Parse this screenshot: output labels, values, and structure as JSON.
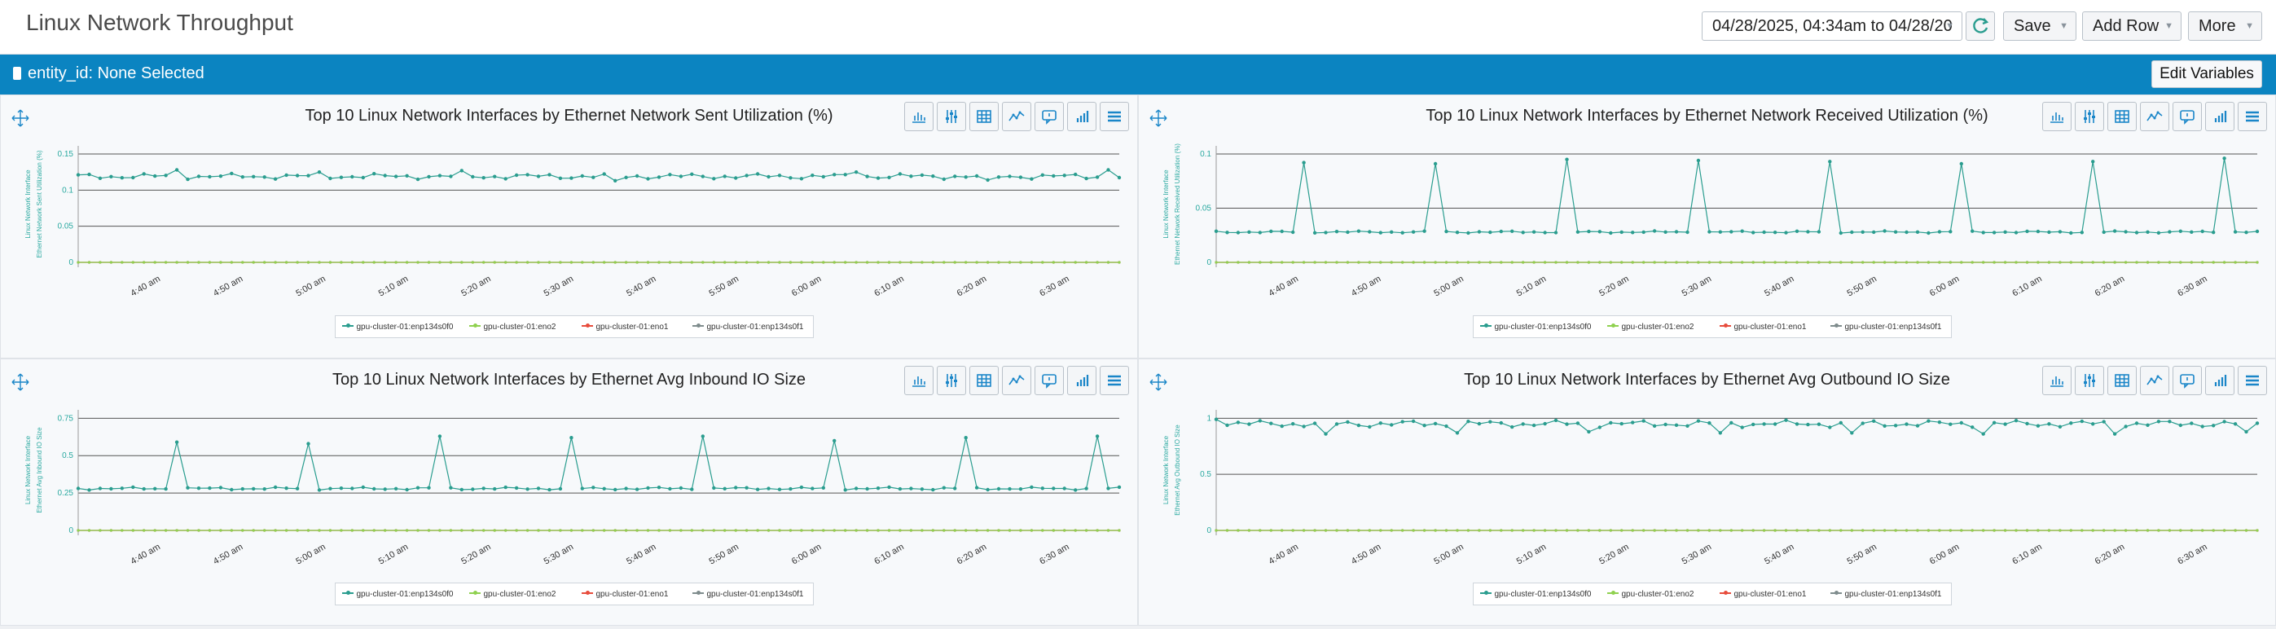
{
  "header": {
    "title": "Linux Network Throughput",
    "time_range": "04/28/2025, 04:34am to 04/28/20",
    "save_label": "Save",
    "add_row_label": "Add Row",
    "more_label": "More"
  },
  "variables": {
    "entity_label": "entity_id: None Selected",
    "edit_label": "Edit Variables"
  },
  "colors": {
    "series0": "#2a9d8f",
    "series1": "#8fd14f",
    "series2": "#e74c3c",
    "series3": "#7f8c8d",
    "accent": "#0b84c1"
  },
  "legend": [
    "gpu-cluster-01:enp134s0f0",
    "gpu-cluster-01:eno2",
    "gpu-cluster-01:eno1",
    "gpu-cluster-01:enp134s0f1"
  ],
  "toolbar_icons": [
    "bar-chart-icon",
    "sliders-icon",
    "table-icon",
    "line-chart-icon",
    "comment-icon",
    "column-chart-icon",
    "menu-icon"
  ],
  "chart_data": [
    {
      "type": "line",
      "title": "Top 10 Linux Network Interfaces by Ethernet Network Sent Utilization (%)",
      "ylabel": "Linux Network Interface",
      "ylabel2": "Ethernet Network Sent Utilization (%)",
      "yticks": [
        "0.15",
        "0.1",
        "0.05",
        "0"
      ],
      "ylim": [
        0,
        0.15
      ],
      "xticks": [
        "4:40 am",
        "4:50 am",
        "5:00 am",
        "5:10 am",
        "5:20 am",
        "5:30 am",
        "5:40 am",
        "5:50 am",
        "6:00 am",
        "6:10 am",
        "6:20 am",
        "6:30 am"
      ],
      "xlim": [
        4.5,
        6.6
      ],
      "series": [
        {
          "name": "gpu-cluster-01:enp134s0f0",
          "base": 0.119,
          "spikes": [
            {
              "at": 9,
              "v": 0.128
            },
            {
              "at": 22,
              "v": 0.125
            },
            {
              "at": 35,
              "v": 0.127
            },
            {
              "at": 71,
              "v": 0.125
            },
            {
              "at": 94,
              "v": 0.128
            }
          ],
          "dips": [
            {
              "at": 49,
              "v": 0.113
            },
            {
              "at": 83,
              "v": 0.114
            }
          ]
        },
        {
          "name": "gpu-cluster-01:eno2",
          "base": 0
        },
        {
          "name": "gpu-cluster-01:eno1",
          "base": 0
        },
        {
          "name": "gpu-cluster-01:enp134s0f1",
          "base": 0
        }
      ]
    },
    {
      "type": "line",
      "title": "Top 10 Linux Network Interfaces by Ethernet Network Received Utilization (%)",
      "ylabel": "Linux Network Interface",
      "ylabel2": "Ethernet Network Received Utilization (%)",
      "yticks": [
        "0.1",
        "0.05",
        "0"
      ],
      "ylim": [
        0,
        0.1
      ],
      "xticks": [
        "4:40 am",
        "4:50 am",
        "5:00 am",
        "5:10 am",
        "5:20 am",
        "5:30 am",
        "5:40 am",
        "5:50 am",
        "6:00 am",
        "6:10 am",
        "6:20 am",
        "6:30 am"
      ],
      "xlim": [
        4.5,
        6.6
      ],
      "series": [
        {
          "name": "gpu-cluster-01:enp134s0f0",
          "base": 0.028,
          "spikes": [
            {
              "at": 8,
              "v": 0.092
            },
            {
              "at": 20,
              "v": 0.091
            },
            {
              "at": 32,
              "v": 0.095
            },
            {
              "at": 44,
              "v": 0.094
            },
            {
              "at": 56,
              "v": 0.093
            },
            {
              "at": 68,
              "v": 0.091
            },
            {
              "at": 80,
              "v": 0.093
            },
            {
              "at": 92,
              "v": 0.096
            }
          ]
        },
        {
          "name": "gpu-cluster-01:eno2",
          "base": 0
        },
        {
          "name": "gpu-cluster-01:eno1",
          "base": 0
        },
        {
          "name": "gpu-cluster-01:enp134s0f1",
          "base": 0
        }
      ]
    },
    {
      "type": "line",
      "title": "Top 10 Linux Network Interfaces by Ethernet Avg Inbound IO Size",
      "ylabel": "Linux Network Interface",
      "ylabel2": "Ethernet Avg Inbound IO Size",
      "yticks": [
        "0.75",
        "0.5",
        "0.25",
        "0"
      ],
      "ylim": [
        0,
        0.75
      ],
      "xticks": [
        "4:40 am",
        "4:50 am",
        "5:00 am",
        "5:10 am",
        "5:20 am",
        "5:30 am",
        "5:40 am",
        "5:50 am",
        "6:00 am",
        "6:10 am",
        "6:20 am",
        "6:30 am"
      ],
      "xlim": [
        4.5,
        6.6
      ],
      "series": [
        {
          "name": "gpu-cluster-01:enp134s0f0",
          "base": 0.28,
          "spikes": [
            {
              "at": 9,
              "v": 0.59
            },
            {
              "at": 21,
              "v": 0.58
            },
            {
              "at": 33,
              "v": 0.63
            },
            {
              "at": 45,
              "v": 0.62
            },
            {
              "at": 57,
              "v": 0.63
            },
            {
              "at": 69,
              "v": 0.6
            },
            {
              "at": 81,
              "v": 0.62
            },
            {
              "at": 93,
              "v": 0.63
            }
          ]
        },
        {
          "name": "gpu-cluster-01:eno2",
          "base": 0
        },
        {
          "name": "gpu-cluster-01:eno1",
          "base": 0
        },
        {
          "name": "gpu-cluster-01:enp134s0f1",
          "base": 0
        }
      ]
    },
    {
      "type": "line",
      "title": "Top 10 Linux Network Interfaces by Ethernet Avg Outbound IO Size",
      "ylabel": "Linux Network Interface",
      "ylabel2": "Ethernet Avg Outbound IO Size",
      "yticks": [
        "1",
        "0.5",
        "0"
      ],
      "ylim": [
        0,
        1.0
      ],
      "xticks": [
        "4:40 am",
        "4:50 am",
        "5:00 am",
        "5:10 am",
        "5:20 am",
        "5:30 am",
        "5:40 am",
        "5:50 am",
        "6:00 am",
        "6:10 am",
        "6:20 am",
        "6:30 am"
      ],
      "xlim": [
        4.5,
        6.6
      ],
      "series": [
        {
          "name": "gpu-cluster-01:enp134s0f0",
          "base": 0.95,
          "spikes": [
            {
              "at": 0,
              "v": 0.99
            }
          ],
          "dips": [
            {
              "at": 10,
              "v": 0.86
            },
            {
              "at": 22,
              "v": 0.87
            },
            {
              "at": 34,
              "v": 0.88
            },
            {
              "at": 46,
              "v": 0.87
            },
            {
              "at": 58,
              "v": 0.87
            },
            {
              "at": 70,
              "v": 0.86
            },
            {
              "at": 82,
              "v": 0.86
            },
            {
              "at": 94,
              "v": 0.88
            }
          ]
        },
        {
          "name": "gpu-cluster-01:eno2",
          "base": 0
        },
        {
          "name": "gpu-cluster-01:eno1",
          "base": 0
        },
        {
          "name": "gpu-cluster-01:enp134s0f1",
          "base": 0
        }
      ]
    }
  ]
}
